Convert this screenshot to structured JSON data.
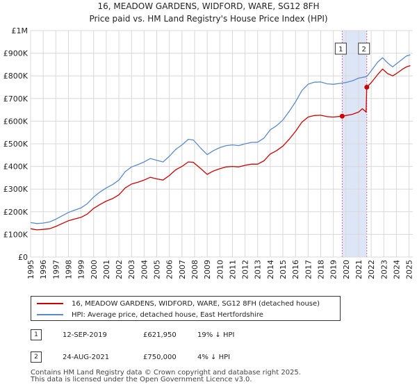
{
  "chart_data": {
    "type": "line",
    "title": "16, MEADOW GARDENS, WIDFORD, WARE, SG12 8FH",
    "subtitle": "Price paid vs. HM Land Registry's House Price Index (HPI)",
    "xlim": [
      1995,
      2025.3
    ],
    "ylim": [
      0,
      1000000
    ],
    "x_ticks": [
      1995,
      1996,
      1997,
      1998,
      1999,
      2000,
      2001,
      2002,
      2003,
      2004,
      2005,
      2006,
      2007,
      2008,
      2009,
      2010,
      2011,
      2012,
      2013,
      2014,
      2015,
      2016,
      2017,
      2018,
      2019,
      2020,
      2021,
      2022,
      2023,
      2024,
      2025
    ],
    "y_ticks": [
      {
        "value": 0,
        "label": "£0"
      },
      {
        "value": 100000,
        "label": "£100K"
      },
      {
        "value": 200000,
        "label": "£200K"
      },
      {
        "value": 300000,
        "label": "£300K"
      },
      {
        "value": 400000,
        "label": "£400K"
      },
      {
        "value": 500000,
        "label": "£500K"
      },
      {
        "value": 600000,
        "label": "£600K"
      },
      {
        "value": 700000,
        "label": "£700K"
      },
      {
        "value": 800000,
        "label": "£800K"
      },
      {
        "value": 900000,
        "label": "£900K"
      },
      {
        "value": 1000000,
        "label": "£1M"
      }
    ],
    "grid": true,
    "shaded_region": {
      "x_start": 2019.7,
      "x_end": 2021.65
    },
    "vlines": [
      2019.7,
      2021.65
    ],
    "series": [
      {
        "name": "16, MEADOW GARDENS, WIDFORD, WARE, SG12 8FH (detached house)",
        "color": "#cc0000",
        "x": [
          1995,
          1995.5,
          1996,
          1996.5,
          1997,
          1997.5,
          1998,
          1998.5,
          1999,
          1999.5,
          2000,
          2000.5,
          2001,
          2001.5,
          2002,
          2002.5,
          2003,
          2003.5,
          2004,
          2004.5,
          2005,
          2005.5,
          2006,
          2006.5,
          2007,
          2007.5,
          2007.9,
          2008.5,
          2009,
          2009.5,
          2010,
          2010.5,
          2011,
          2011.5,
          2012,
          2012.5,
          2013,
          2013.5,
          2014,
          2014.5,
          2015,
          2015.5,
          2016,
          2016.5,
          2017,
          2017.5,
          2018,
          2018.5,
          2019,
          2019.7,
          2020,
          2020.5,
          2021,
          2021.3,
          2021.6,
          2021.65,
          2022,
          2022.5,
          2022.9,
          2023.3,
          2023.7,
          2024,
          2024.5,
          2024.8,
          2025.1
        ],
        "y": [
          125000,
          120000,
          122000,
          125000,
          135000,
          148000,
          160000,
          168000,
          175000,
          190000,
          215000,
          232000,
          247000,
          258000,
          275000,
          305000,
          322000,
          330000,
          340000,
          352000,
          345000,
          340000,
          360000,
          385000,
          400000,
          420000,
          418000,
          390000,
          365000,
          380000,
          390000,
          398000,
          400000,
          398000,
          405000,
          410000,
          410000,
          425000,
          455000,
          470000,
          490000,
          520000,
          555000,
          595000,
          618000,
          625000,
          626000,
          620000,
          618000,
          621950,
          625000,
          630000,
          640000,
          655000,
          640000,
          750000,
          770000,
          805000,
          830000,
          810000,
          800000,
          810000,
          830000,
          840000,
          845000
        ]
      },
      {
        "name": "HPI: Average price, detached house, East Hertfordshire",
        "color": "#5b8ac9",
        "x": [
          1995,
          1995.5,
          1996,
          1996.5,
          1997,
          1997.5,
          1998,
          1998.5,
          1999,
          1999.5,
          2000,
          2000.5,
          2001,
          2001.5,
          2002,
          2002.5,
          2003,
          2003.5,
          2004,
          2004.5,
          2005,
          2005.5,
          2006,
          2006.5,
          2007,
          2007.5,
          2007.9,
          2008.5,
          2009,
          2009.5,
          2010,
          2010.5,
          2011,
          2011.5,
          2012,
          2012.5,
          2013,
          2013.5,
          2014,
          2014.5,
          2015,
          2015.5,
          2016,
          2016.5,
          2017,
          2017.5,
          2018,
          2018.5,
          2019,
          2019.7,
          2020,
          2020.5,
          2021,
          2021.65,
          2022,
          2022.5,
          2022.9,
          2023.3,
          2023.7,
          2024,
          2024.5,
          2024.8,
          2025.1
        ],
        "y": [
          152000,
          148000,
          150000,
          155000,
          167000,
          182000,
          197000,
          207000,
          217000,
          236000,
          265000,
          287000,
          305000,
          320000,
          340000,
          377000,
          398000,
          408000,
          420000,
          435000,
          427000,
          420000,
          445000,
          475000,
          495000,
          520000,
          517000,
          480000,
          452000,
          470000,
          483000,
          492000,
          495000,
          492000,
          500000,
          506000,
          507000,
          525000,
          562000,
          580000,
          605000,
          643000,
          685000,
          735000,
          763000,
          772000,
          773000,
          765000,
          763000,
          768000,
          771000,
          778000,
          790000,
          797000,
          822000,
          860000,
          880000,
          857000,
          840000,
          853000,
          875000,
          888000,
          893000
        ]
      }
    ],
    "markers": [
      {
        "label": "1",
        "x": 2019.7,
        "y": 621950
      },
      {
        "label": "2",
        "x": 2021.65,
        "y": 750000
      }
    ]
  },
  "legend": {
    "series1": "16, MEADOW GARDENS, WIDFORD, WARE, SG12 8FH (detached house)",
    "series2": "HPI: Average price, detached house, East Hertfordshire"
  },
  "transactions": [
    {
      "num": "1",
      "date": "12-SEP-2019",
      "price": "£621,950",
      "hpi": "19% ↓ HPI"
    },
    {
      "num": "2",
      "date": "24-AUG-2021",
      "price": "£750,000",
      "hpi": "4% ↓ HPI"
    }
  ],
  "footer": {
    "line1": "Contains HM Land Registry data © Crown copyright and database right 2025.",
    "line2": "This data is licensed under the Open Government Licence v3.0."
  },
  "colors": {
    "property": "#cc0000",
    "hpi": "#5b8ac9",
    "shade": "#dde6f7",
    "vline": "#e06080"
  }
}
